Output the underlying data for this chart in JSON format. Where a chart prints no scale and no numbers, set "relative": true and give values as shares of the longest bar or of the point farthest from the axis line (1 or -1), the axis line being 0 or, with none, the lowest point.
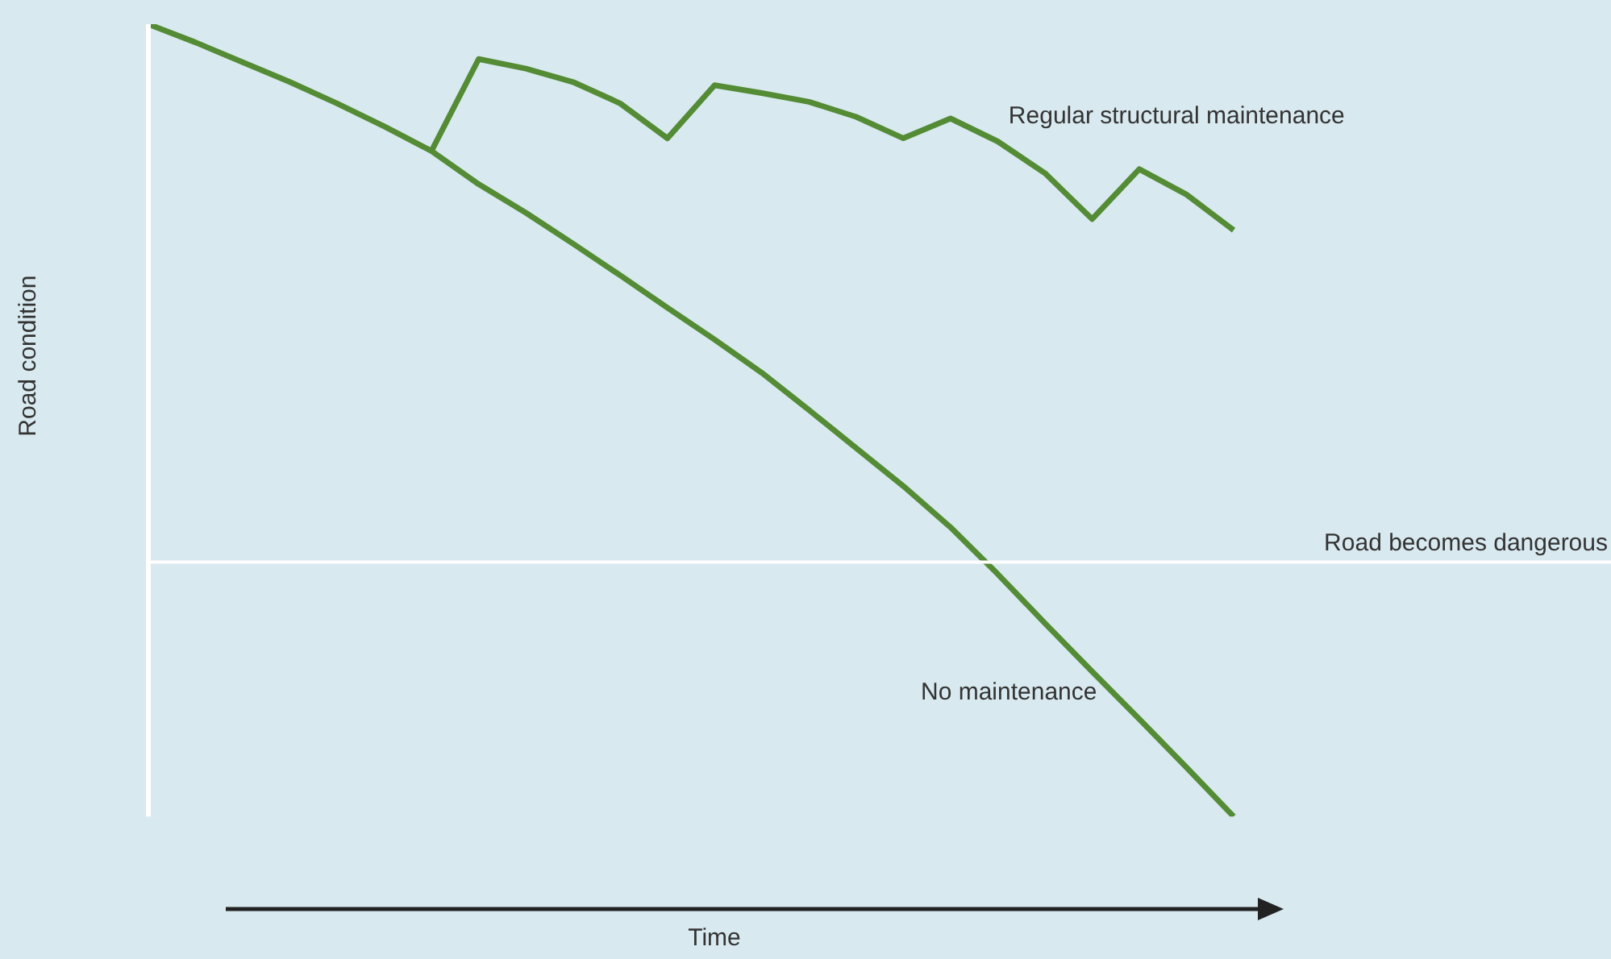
{
  "chart_data": {
    "type": "line",
    "relative": true,
    "xlabel": "Time",
    "ylabel": "Road condition",
    "marker": "none",
    "line_style": "solid",
    "categories": [
      null,
      null,
      null,
      null,
      null,
      null,
      null,
      null,
      null,
      null,
      null,
      null,
      null,
      null,
      null,
      null,
      null,
      null,
      null,
      null,
      null,
      null,
      null,
      null
    ],
    "series": [
      {
        "name": "No maintenance",
        "color": "#548b35",
        "values": [
          1,
          0.977,
          0.952,
          0.927,
          0.9,
          0.871,
          0.84,
          0.798,
          0.762,
          0.723,
          0.683,
          0.642,
          0.602,
          0.56,
          0.513,
          0.465,
          0.417,
          0.365,
          0.306,
          0.244,
          0.183,
          0.123,
          0.062,
          0
        ]
      },
      {
        "name": "Regular structural maintenance",
        "color": "#548b35",
        "values": [
          null,
          null,
          null,
          null,
          null,
          null,
          0.84,
          0.956,
          0.944,
          0.927,
          0.9,
          0.856,
          0.923,
          0.913,
          0.902,
          0.883,
          0.856,
          0.881,
          0.852,
          0.812,
          0.754,
          0.817,
          0.785,
          0.74
        ]
      }
    ],
    "ref_lines": [
      {
        "axis": "y",
        "value": 0.321,
        "label": "Road becomes dangerous",
        "color": "#ffffff"
      }
    ]
  }
}
